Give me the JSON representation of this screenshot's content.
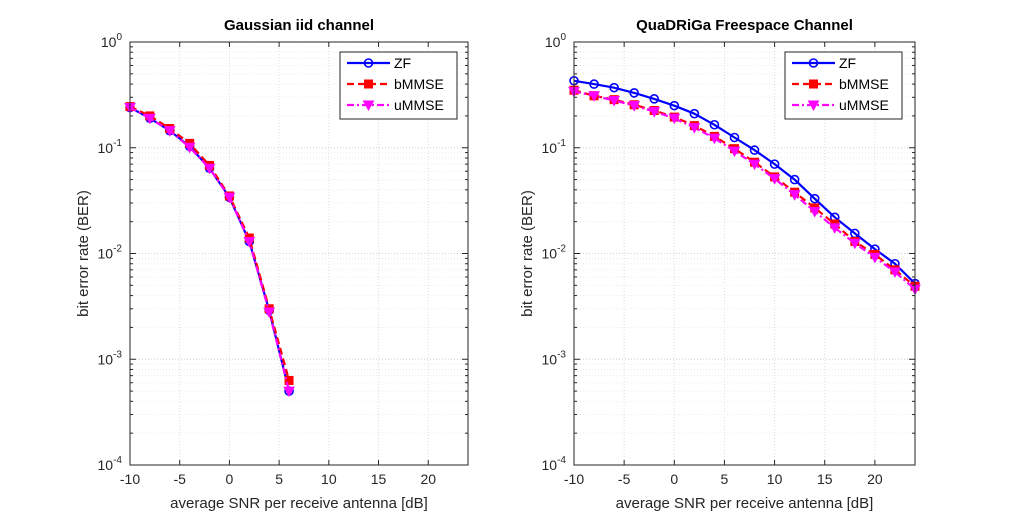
{
  "chart_data": [
    {
      "type": "line",
      "title": "Gaussian iid channel",
      "xlabel": "average SNR per receive antenna [dB]",
      "ylabel": "bit error rate (BER)",
      "xlim": [
        -10,
        24
      ],
      "ylim": [
        0.0001,
        1
      ],
      "yscale": "log",
      "grid": true,
      "legend_position": "top-right",
      "xticks": [
        -10,
        -5,
        0,
        5,
        10,
        15,
        20
      ],
      "xtick_labels": [
        "-10",
        "-5",
        "0",
        "5",
        "10",
        "15",
        "20"
      ],
      "ytick_labels": [
        {
          "base": "10",
          "exp": "0"
        },
        {
          "base": "10",
          "exp": "-1"
        },
        {
          "base": "10",
          "exp": "-2"
        },
        {
          "base": "10",
          "exp": "-3"
        },
        {
          "base": "10",
          "exp": "-4"
        }
      ],
      "series": [
        {
          "name": "ZF",
          "color": "#0000ff",
          "marker": "circle",
          "line": "solid",
          "x": [
            -10,
            -8,
            -6,
            -4,
            -2,
            0,
            2,
            4,
            6
          ],
          "y": [
            0.24,
            0.19,
            0.145,
            0.103,
            0.064,
            0.034,
            0.013,
            0.0029,
            0.0005
          ]
        },
        {
          "name": "bMMSE",
          "color": "#ff0000",
          "marker": "square",
          "line": "dashed",
          "x": [
            -10,
            -8,
            -6,
            -4,
            -2,
            0,
            2,
            4,
            6
          ],
          "y": [
            0.245,
            0.2,
            0.152,
            0.11,
            0.068,
            0.035,
            0.014,
            0.003,
            0.00063
          ]
        },
        {
          "name": "uMMSE",
          "color": "#ff00ff",
          "marker": "triangle-down",
          "line": "dashdot",
          "x": [
            -10,
            -8,
            -6,
            -4,
            -2,
            0,
            2,
            4,
            6
          ],
          "y": [
            0.24,
            0.19,
            0.145,
            0.101,
            0.064,
            0.034,
            0.013,
            0.0028,
            0.0005
          ]
        }
      ]
    },
    {
      "type": "line",
      "title": "QuaDRiGa Freespace Channel",
      "xlabel": "average SNR per receive antenna [dB]",
      "ylabel": "bit error rate (BER)",
      "xlim": [
        -10,
        24
      ],
      "ylim": [
        0.0001,
        1
      ],
      "yscale": "log",
      "grid": true,
      "legend_position": "top-right",
      "xticks": [
        -10,
        -5,
        0,
        5,
        10,
        15,
        20
      ],
      "xtick_labels": [
        "-10",
        "-5",
        "0",
        "5",
        "10",
        "15",
        "20"
      ],
      "ytick_labels": [
        {
          "base": "10",
          "exp": "0"
        },
        {
          "base": "10",
          "exp": "-1"
        },
        {
          "base": "10",
          "exp": "-2"
        },
        {
          "base": "10",
          "exp": "-3"
        },
        {
          "base": "10",
          "exp": "-4"
        }
      ],
      "series": [
        {
          "name": "ZF",
          "color": "#0000ff",
          "marker": "circle",
          "line": "solid",
          "x": [
            -10,
            -8,
            -6,
            -4,
            -2,
            0,
            2,
            4,
            6,
            8,
            10,
            12,
            14,
            16,
            18,
            20,
            22,
            24
          ],
          "y": [
            0.43,
            0.4,
            0.37,
            0.33,
            0.29,
            0.25,
            0.21,
            0.165,
            0.125,
            0.095,
            0.07,
            0.05,
            0.033,
            0.022,
            0.0155,
            0.011,
            0.008,
            0.0052
          ]
        },
        {
          "name": "bMMSE",
          "color": "#ff0000",
          "marker": "square",
          "line": "dashed",
          "x": [
            -10,
            -8,
            -6,
            -4,
            -2,
            0,
            2,
            4,
            6,
            8,
            10,
            12,
            14,
            16,
            18,
            20,
            22,
            24
          ],
          "y": [
            0.35,
            0.31,
            0.285,
            0.255,
            0.225,
            0.195,
            0.162,
            0.128,
            0.098,
            0.073,
            0.053,
            0.038,
            0.027,
            0.019,
            0.013,
            0.0098,
            0.007,
            0.0049
          ]
        },
        {
          "name": "uMMSE",
          "color": "#ff00ff",
          "marker": "triangle-down",
          "line": "dashdot",
          "x": [
            -10,
            -8,
            -6,
            -4,
            -2,
            0,
            2,
            4,
            6,
            8,
            10,
            12,
            14,
            16,
            18,
            20,
            22,
            24
          ],
          "y": [
            0.34,
            0.31,
            0.28,
            0.25,
            0.22,
            0.19,
            0.155,
            0.123,
            0.093,
            0.07,
            0.051,
            0.036,
            0.025,
            0.0175,
            0.0125,
            0.0092,
            0.0067,
            0.0046
          ]
        }
      ]
    }
  ]
}
